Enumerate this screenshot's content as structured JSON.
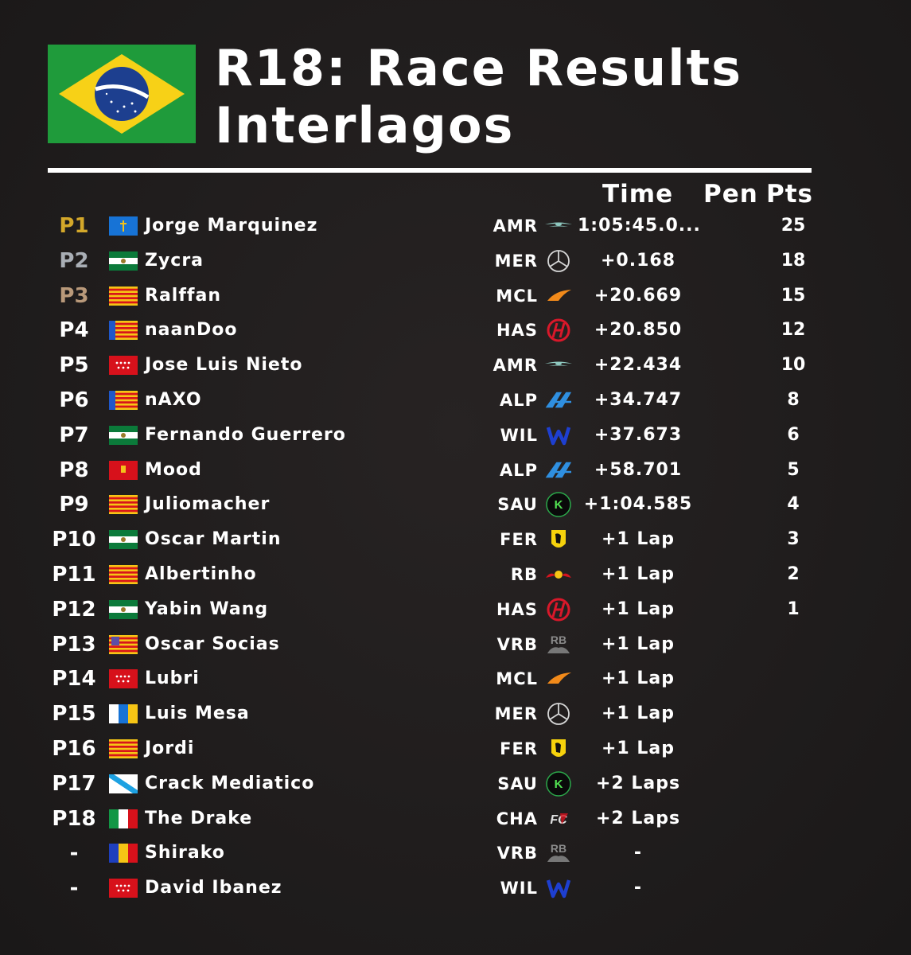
{
  "header": {
    "title_line1": "R18: Race Results",
    "title_line2": "Interlagos",
    "flag": "brazil-flag"
  },
  "columns": {
    "time": "Time",
    "pen": "Pen",
    "pts": "Pts"
  },
  "colors": {
    "p1": "#d4a82a",
    "p2": "#a9aeb5",
    "p3": "#b9997a",
    "default": "#ffffff"
  },
  "results": [
    {
      "pos": "P1",
      "flag": "asturias",
      "name": "Jorge Marquinez",
      "team": "AMR",
      "logo": "aston-martin-logo",
      "time": "1:05:45.0...",
      "pts": "25"
    },
    {
      "pos": "P2",
      "flag": "andalusia",
      "name": "Zycra",
      "team": "MER",
      "logo": "mercedes-logo",
      "time": "+0.168",
      "pts": "18"
    },
    {
      "pos": "P3",
      "flag": "catalonia",
      "name": "Ralffan",
      "team": "MCL",
      "logo": "mclaren-logo",
      "time": "+20.669",
      "pts": "15"
    },
    {
      "pos": "P4",
      "flag": "valencia",
      "name": "naanDoo",
      "team": "HAS",
      "logo": "haas-logo",
      "time": "+20.850",
      "pts": "12"
    },
    {
      "pos": "P5",
      "flag": "madrid",
      "name": "Jose Luis Nieto",
      "team": "AMR",
      "logo": "aston-martin-logo",
      "time": "+22.434",
      "pts": "10"
    },
    {
      "pos": "P6",
      "flag": "valencia",
      "name": "nAXO",
      "team": "ALP",
      "logo": "alpine-logo",
      "time": "+34.747",
      "pts": "8"
    },
    {
      "pos": "P7",
      "flag": "andalusia",
      "name": "Fernando Guerrero",
      "team": "WIL",
      "logo": "williams-logo",
      "time": "+37.673",
      "pts": "6"
    },
    {
      "pos": "P8",
      "flag": "murcia",
      "name": "Mood",
      "team": "ALP",
      "logo": "alpine-logo",
      "time": "+58.701",
      "pts": "5"
    },
    {
      "pos": "P9",
      "flag": "catalonia",
      "name": "Juliomacher",
      "team": "SAU",
      "logo": "sauber-logo",
      "time": "+1:04.585",
      "pts": "4"
    },
    {
      "pos": "P10",
      "flag": "andalusia",
      "name": "Oscar Martin",
      "team": "FER",
      "logo": "ferrari-logo",
      "time": "+1 Lap",
      "pts": "3"
    },
    {
      "pos": "P11",
      "flag": "catalonia",
      "name": "Albertinho",
      "team": "RB",
      "logo": "red-bull-logo",
      "time": "+1 Lap",
      "pts": "2"
    },
    {
      "pos": "P12",
      "flag": "andalusia",
      "name": "Yabin Wang",
      "team": "HAS",
      "logo": "haas-logo",
      "time": "+1 Lap",
      "pts": "1"
    },
    {
      "pos": "P13",
      "flag": "aragon",
      "name": "Oscar Socias",
      "team": "VRB",
      "logo": "visa-rb-logo",
      "time": "+1 Lap",
      "pts": ""
    },
    {
      "pos": "P14",
      "flag": "madrid",
      "name": "Lubri",
      "team": "MCL",
      "logo": "mclaren-logo",
      "time": "+1 Lap",
      "pts": ""
    },
    {
      "pos": "P15",
      "flag": "canarias",
      "name": "Luis Mesa",
      "team": "MER",
      "logo": "mercedes-logo",
      "time": "+1 Lap",
      "pts": ""
    },
    {
      "pos": "P16",
      "flag": "catalonia",
      "name": "Jordi",
      "team": "FER",
      "logo": "ferrari-logo",
      "time": "+1 Lap",
      "pts": ""
    },
    {
      "pos": "P17",
      "flag": "galicia",
      "name": "Crack Mediatico",
      "team": "SAU",
      "logo": "sauber-logo",
      "time": "+2 Laps",
      "pts": ""
    },
    {
      "pos": "P18",
      "flag": "italy",
      "name": "The Drake",
      "team": "CHA",
      "logo": "cha-logo",
      "time": "+2 Laps",
      "pts": ""
    },
    {
      "pos": "-",
      "flag": "romania",
      "name": "Shirako",
      "team": "VRB",
      "logo": "visa-rb-logo",
      "time": "-",
      "pts": ""
    },
    {
      "pos": "-",
      "flag": "madrid",
      "name": "David Ibanez",
      "team": "WIL",
      "logo": "williams-logo",
      "time": "-",
      "pts": ""
    }
  ]
}
